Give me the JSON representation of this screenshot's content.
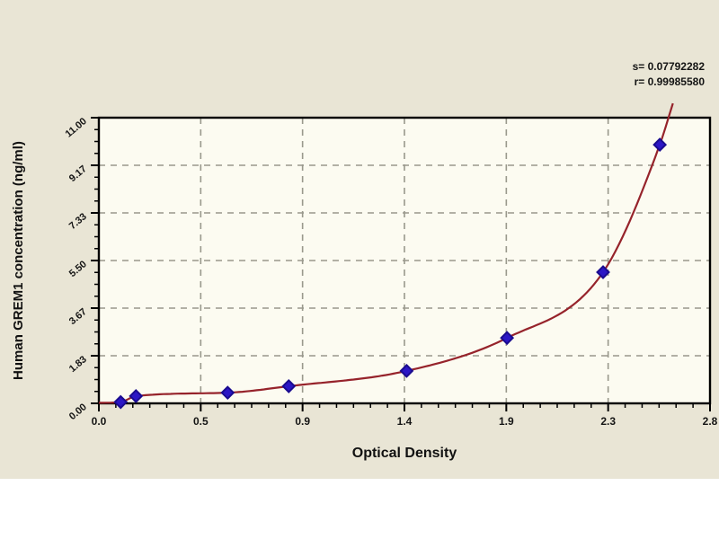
{
  "panel": {
    "background_color": "#e9e5d5",
    "plot_background_color": "#fcfbf1",
    "bottom_strip_color": "#ffffff"
  },
  "stats": {
    "s_label": "s= 0.07792282",
    "r_label": "r= 0.99985580"
  },
  "chart_data": {
    "type": "scatter",
    "title": "",
    "xlabel": "Optical Density",
    "ylabel": "Human GREM1 concentration (ng/ml)",
    "xlim": [
      0,
      2.8
    ],
    "ylim": [
      0,
      11
    ],
    "grid": "dashed",
    "legend": "none",
    "x_ticks": {
      "values": [
        0,
        0.4667,
        0.9333,
        1.4,
        1.8667,
        2.3333,
        2.8
      ],
      "labels": [
        "0.0",
        "0.5",
        "0.9",
        "1.4",
        "1.9",
        "2.3",
        "2.8"
      ]
    },
    "y_ticks": {
      "values": [
        0,
        1.8333,
        3.6667,
        5.5,
        7.3333,
        9.1667,
        11
      ],
      "labels": [
        "0.00",
        "1.83",
        "3.67",
        "5.50",
        "7.33",
        "9.17",
        "11.00"
      ]
    },
    "series": [
      {
        "name": "standard-points",
        "type": "scatter",
        "marker": "diamond",
        "color": "#2b16c5",
        "edge_color": "#1a0b8f",
        "points": [
          [
            0.1,
            0.05
          ],
          [
            0.17,
            0.28
          ],
          [
            0.59,
            0.41
          ],
          [
            0.87,
            0.66
          ],
          [
            1.41,
            1.25
          ],
          [
            1.87,
            2.52
          ],
          [
            2.31,
            5.05
          ],
          [
            2.57,
            9.96
          ]
        ]
      },
      {
        "name": "fit-curve",
        "type": "line",
        "color": "#96232b",
        "anchors": [
          [
            0.0,
            0.02
          ],
          [
            0.1,
            0.05
          ],
          [
            0.17,
            0.28
          ],
          [
            0.59,
            0.41
          ],
          [
            0.87,
            0.66
          ],
          [
            1.41,
            1.25
          ],
          [
            1.87,
            2.52
          ],
          [
            2.31,
            5.05
          ],
          [
            2.57,
            9.96
          ],
          [
            2.63,
            11.55
          ]
        ]
      }
    ],
    "fit_stats": {
      "s": "0.07792282",
      "r": "0.99985580"
    },
    "axis_color": "#000000",
    "grid_color": "#99988c"
  }
}
